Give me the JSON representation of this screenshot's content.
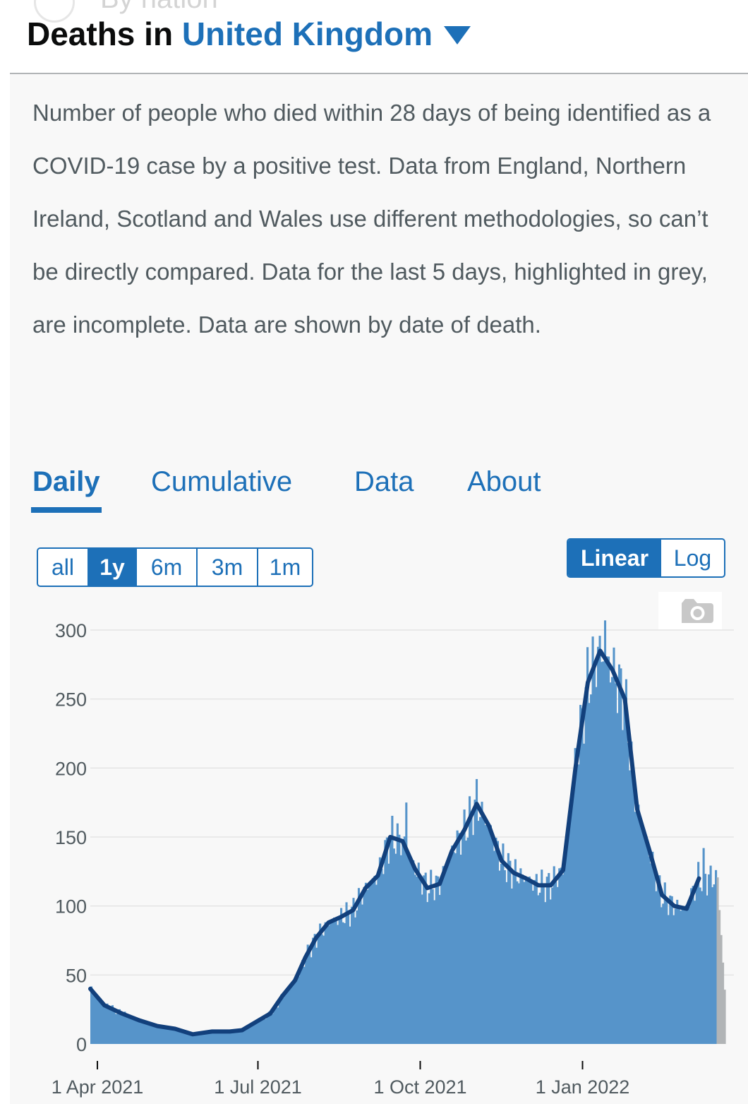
{
  "ghost_heading": "By nation",
  "header": {
    "prefix": "Deaths in",
    "location": "United Kingdom"
  },
  "description": "Number of people who died within 28 days of being identified as a COVID-19 case by a positive test. Data from England, Northern Ireland, Scotland and Wales use different methodologies, so can’t be directly compared. Data for the last 5 days, highlighted in grey, are incomplete. Data are shown by date of death.",
  "tabs": [
    "Daily",
    "Cumulative",
    "Data",
    "About"
  ],
  "active_tab": "Daily",
  "range_buttons": [
    "all",
    "1y",
    "6m",
    "3m",
    "1m"
  ],
  "active_range": "1y",
  "scale_buttons": [
    "Linear",
    "Log"
  ],
  "active_scale": "Linear",
  "icons": {
    "camera": "camera-icon",
    "location_dropdown": "chevron-down-icon"
  },
  "colors": {
    "accent": "#1d70b8",
    "bars": "#5694ca",
    "incomplete_bars": "#b1b4b6",
    "average_line": "#12407c"
  },
  "chart_data": {
    "type": "bar",
    "overlay": "line (rolling average)",
    "title": "",
    "xlabel": "",
    "ylabel": "",
    "ylim": [
      0,
      300
    ],
    "yticks": [
      0,
      50,
      100,
      150,
      200,
      250,
      300
    ],
    "y_tick_labels": [
      "0",
      "50",
      "100",
      "150",
      "200",
      "250",
      "300"
    ],
    "x_tick_labels": [
      "1 Apr 2021",
      "1 Jul 2021",
      "1 Oct 2021",
      "1 Jan 2022"
    ],
    "x_tick_dates": [
      "2021-04-01",
      "2021-07-01",
      "2021-10-01",
      "2022-01-01"
    ],
    "x_range": [
      "2021-03-28",
      "2022-03-23"
    ],
    "incomplete_last_days": 5,
    "grid": true,
    "series": [
      {
        "kind": "bar",
        "color": "#5694ca"
      },
      {
        "kind": "line",
        "color": "#12407c"
      }
    ],
    "average_points": [
      [
        "2021-03-28",
        40
      ],
      [
        "2021-04-05",
        28
      ],
      [
        "2021-04-15",
        22
      ],
      [
        "2021-04-25",
        17
      ],
      [
        "2021-05-05",
        13
      ],
      [
        "2021-05-15",
        11
      ],
      [
        "2021-05-25",
        7
      ],
      [
        "2021-06-05",
        9
      ],
      [
        "2021-06-15",
        9
      ],
      [
        "2021-06-22",
        10
      ],
      [
        "2021-06-30",
        16
      ],
      [
        "2021-07-08",
        22
      ],
      [
        "2021-07-15",
        35
      ],
      [
        "2021-07-22",
        46
      ],
      [
        "2021-07-28",
        63
      ],
      [
        "2021-08-03",
        77
      ],
      [
        "2021-08-10",
        88
      ],
      [
        "2021-08-17",
        92
      ],
      [
        "2021-08-24",
        97
      ],
      [
        "2021-08-31",
        113
      ],
      [
        "2021-09-07",
        122
      ],
      [
        "2021-09-14",
        150
      ],
      [
        "2021-09-21",
        147
      ],
      [
        "2021-09-28",
        127
      ],
      [
        "2021-10-05",
        113
      ],
      [
        "2021-10-12",
        116
      ],
      [
        "2021-10-19",
        140
      ],
      [
        "2021-10-26",
        155
      ],
      [
        "2021-11-02",
        174
      ],
      [
        "2021-11-09",
        158
      ],
      [
        "2021-11-16",
        133
      ],
      [
        "2021-11-23",
        124
      ],
      [
        "2021-11-30",
        120
      ],
      [
        "2021-12-07",
        115
      ],
      [
        "2021-12-14",
        115
      ],
      [
        "2021-12-21",
        126
      ],
      [
        "2021-12-28",
        200
      ],
      [
        "2022-01-04",
        262
      ],
      [
        "2022-01-11",
        285
      ],
      [
        "2022-01-18",
        271
      ],
      [
        "2022-01-25",
        250
      ],
      [
        "2022-02-01",
        170
      ],
      [
        "2022-02-08",
        140
      ],
      [
        "2022-02-15",
        108
      ],
      [
        "2022-02-22",
        100
      ],
      [
        "2022-03-01",
        98
      ],
      [
        "2022-03-08",
        120
      ]
    ],
    "bar_daily_peaks": [
      [
        "2021-09-23",
        175
      ],
      [
        "2021-11-02",
        192
      ],
      [
        "2022-01-14",
        307
      ],
      [
        "2022-03-11",
        142
      ]
    ]
  }
}
